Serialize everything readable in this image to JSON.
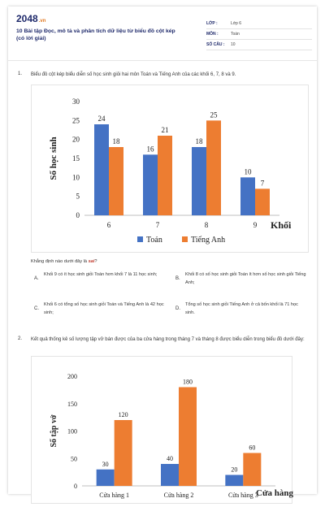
{
  "header": {
    "logo_main": "2048",
    "logo_suffix": ".vn",
    "title": "10 Bài tập Đọc, mô tả và phân tích dữ liệu từ biểu đồ cột kép (có lời giải)",
    "meta": [
      {
        "key": "LỚP :",
        "value": "Lớp 6"
      },
      {
        "key": "MÔN :",
        "value": "Toán"
      },
      {
        "key": "SỐ CÂU :",
        "value": "10"
      }
    ]
  },
  "q1": {
    "number": "1.",
    "text": "Biểu đồ cột kép biểu diễn số học sinh giỏi hai môn Toán và Tiếng Anh của các khối 6, 7, 8 và 9.",
    "prompt_prefix": "Khẳng định nào dưới đây là ",
    "prompt_emph": "sai",
    "prompt_suffix": "?",
    "options": [
      {
        "label": "A.",
        "text": "Khối 9 có ít học sinh giỏi Toán hơn khối 7 là 11 học sinh;"
      },
      {
        "label": "B.",
        "text": "Khối 8 có số học sinh giỏi Toán ít hơn số học sinh giỏi Tiếng Anh;"
      },
      {
        "label": "C.",
        "text": "Khối 6 có tổng số học sinh giỏi Toán và Tiếng Anh là 42 học sinh;"
      },
      {
        "label": "D.",
        "text": "Tổng số học sinh giỏi Tiếng Anh ở cả bốn khối là 71 học sinh."
      }
    ]
  },
  "q2": {
    "number": "2.",
    "text": "Kết quả thống kê số lượng tập vở bán được của ba cửa hàng trong tháng 7 và tháng 8 được biểu diễn trong biểu đồ dưới đây:"
  },
  "colors": {
    "blue": "#4472c4",
    "orange": "#ed7d31"
  },
  "chart_data": [
    {
      "type": "bar",
      "categories": [
        "6",
        "7",
        "8",
        "9"
      ],
      "series": [
        {
          "name": "Toán",
          "values": [
            24,
            16,
            18,
            10
          ]
        },
        {
          "name": "Tiếng Anh",
          "values": [
            18,
            21,
            25,
            7
          ]
        }
      ],
      "xlabel": "Khối",
      "ylabel": "Số học sinh",
      "ylim": [
        0,
        30
      ],
      "yticks": [
        0,
        5,
        10,
        15,
        20,
        25,
        30
      ],
      "legend": "bottom",
      "grid": false
    },
    {
      "type": "bar",
      "categories": [
        "Cửa hàng 1",
        "Cửa hàng 2",
        "Cửa hàng 3"
      ],
      "series": [
        {
          "values": [
            30,
            40,
            20
          ]
        },
        {
          "values": [
            120,
            180,
            60
          ]
        }
      ],
      "xlabel": "Cửa hàng",
      "ylabel": "Số tập vở",
      "ylim": [
        0,
        200
      ],
      "yticks": [
        0,
        50,
        100,
        150,
        200
      ],
      "grid": false
    }
  ]
}
